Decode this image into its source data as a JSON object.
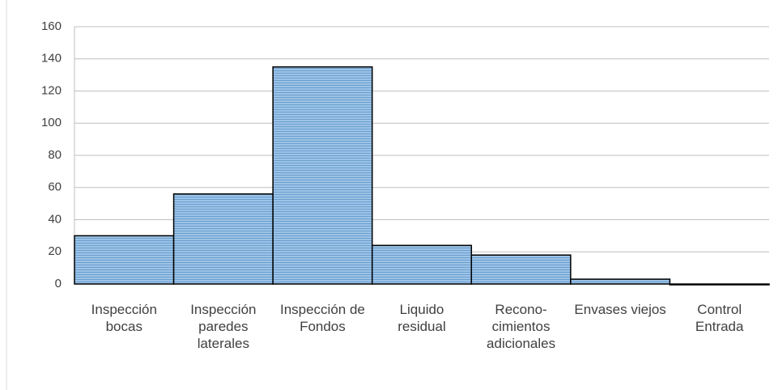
{
  "chart_data": {
    "type": "bar",
    "categories": [
      "Inspección bocas",
      "Inspección paredes laterales",
      "Inspección de Fondos",
      "Liquido residual",
      "Recono-cimientos adicionales",
      "Envases viejos",
      "Control Entrada"
    ],
    "values": [
      30,
      56,
      135,
      24,
      18,
      3,
      0
    ],
    "color": "#9dc3e6",
    "ylim": [
      0,
      160
    ],
    "yticks": [
      0,
      20,
      40,
      60,
      80,
      100,
      120,
      140,
      160
    ],
    "grid": true
  }
}
